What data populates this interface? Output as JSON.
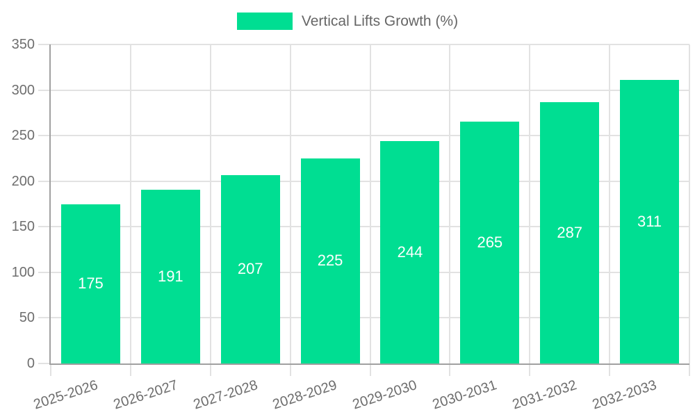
{
  "legend": {
    "label": "Vertical Lifts Growth (%)"
  },
  "chart_data": {
    "type": "bar",
    "title": "",
    "xlabel": "",
    "ylabel": "",
    "legend_label": "Vertical Lifts Growth (%)",
    "legend_position": "top",
    "categories": [
      "2025-2026",
      "2026-2027",
      "2027-2028",
      "2028-2029",
      "2029-2030",
      "2030-2031",
      "2031-2032",
      "2032-2033"
    ],
    "values": [
      175,
      191,
      207,
      225,
      244,
      265,
      287,
      311
    ],
    "value_labels_shown": true,
    "ylim": [
      0,
      350
    ],
    "ytick_step": 50,
    "yticks": [
      0,
      50,
      100,
      150,
      200,
      250,
      300,
      350
    ],
    "grid": true,
    "bar_color": "#00DE92",
    "value_label_color": "#ffffff",
    "grid_color": "#e2e2e2",
    "axis_color": "#a0a0a0",
    "tick_label_color": "#6e6e6e",
    "legend_text_color": "#666666",
    "background_color": "#ffffff"
  }
}
